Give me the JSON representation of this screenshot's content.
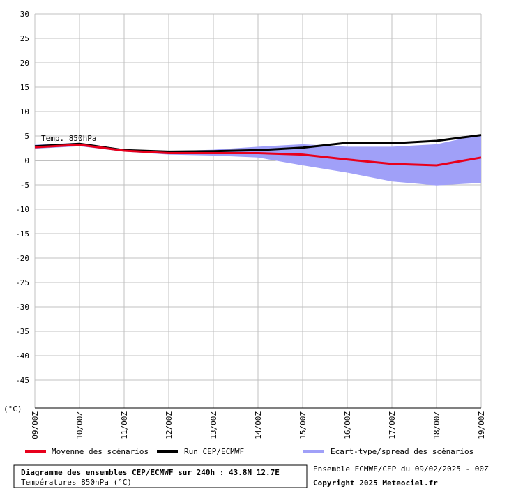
{
  "chart_data": {
    "type": "line",
    "annotation": "Temp. 850hPa",
    "y_unit": "(°C)",
    "categories": [
      "09/00Z",
      "10/00Z",
      "11/00Z",
      "12/00Z",
      "13/00Z",
      "14/00Z",
      "15/00Z",
      "16/00Z",
      "17/00Z",
      "18/00Z",
      "19/00Z"
    ],
    "band": {
      "name": "Ecart-type/spread des scénarios",
      "color": "#a0a0f8",
      "upper": [
        3.2,
        3.6,
        2.3,
        1.9,
        2.2,
        2.8,
        3.3,
        2.8,
        2.8,
        3.3,
        5.3
      ],
      "lower": [
        2.4,
        2.9,
        1.8,
        1.2,
        1.0,
        0.6,
        -1.0,
        -2.5,
        -4.3,
        -5.1,
        -4.6
      ]
    },
    "series": [
      {
        "name": "Moyenne des scénarios",
        "color": "#e8001c",
        "values": [
          2.7,
          3.2,
          2.0,
          1.5,
          1.5,
          1.5,
          1.2,
          0.2,
          -0.7,
          -1.0,
          0.6
        ]
      },
      {
        "name": "Run CEP/ECMWF",
        "color": "#000000",
        "values": [
          2.9,
          3.4,
          2.1,
          1.8,
          1.9,
          2.1,
          2.6,
          3.6,
          3.5,
          4.0,
          5.2
        ]
      }
    ],
    "ylim": [
      -50,
      30
    ],
    "yticks": [
      30,
      25,
      20,
      15,
      10,
      5,
      0,
      -5,
      -10,
      -15,
      -20,
      -25,
      -30,
      -35,
      -40,
      -45
    ],
    "grid": true,
    "footer": {
      "title": "Diagramme des ensembles CEP/ECMWF sur 240h : 43.8N 12.7E",
      "subtitle": "Températures 850hPa (°C)",
      "run": "Ensemble ECMWF/CEP du 09/02/2025 - 00Z",
      "copyright": "Copyright 2025 Meteociel.fr"
    }
  }
}
